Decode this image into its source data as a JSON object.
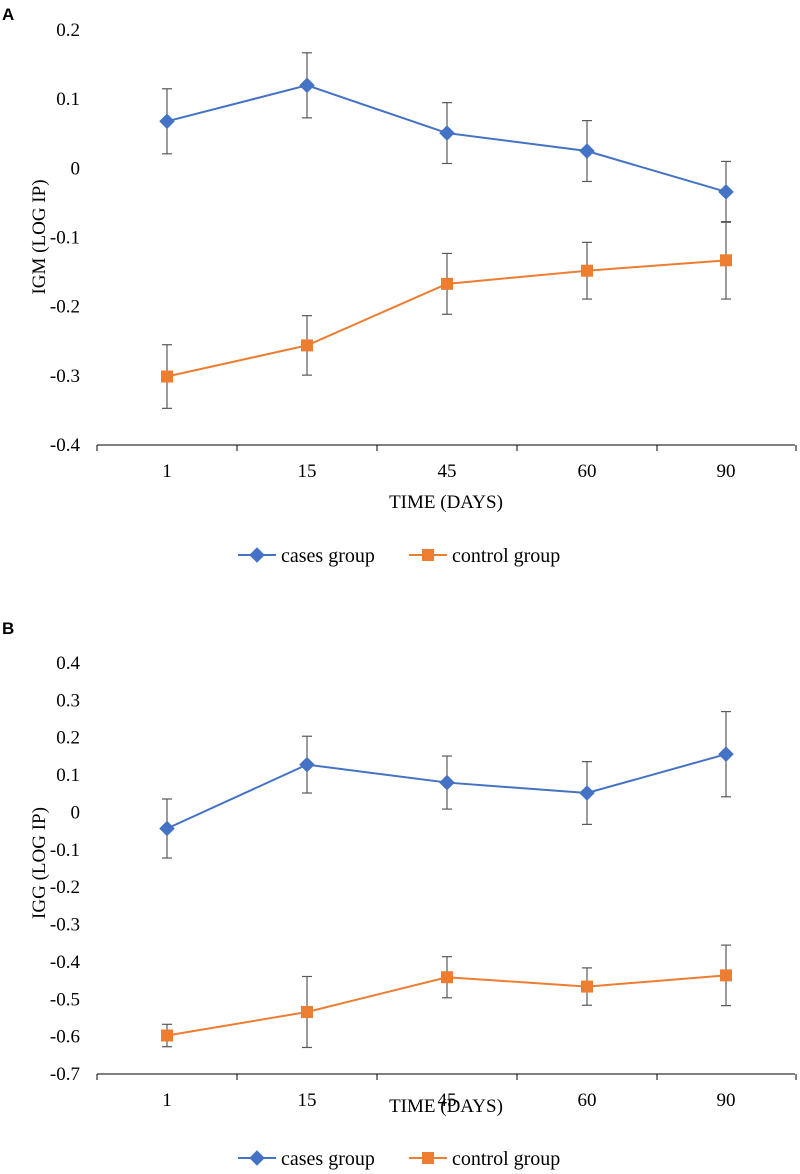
{
  "colors": {
    "cases": "#4472C4",
    "control": "#ED7D31",
    "errorbar": "#595959"
  },
  "chart_data": [
    {
      "type": "line",
      "panel": "A",
      "categories": [
        "1",
        "15",
        "45",
        "60",
        "90"
      ],
      "series": [
        {
          "name": "cases group",
          "values": [
            0.068,
            0.12,
            0.051,
            0.025,
            -0.034
          ],
          "errors": [
            0.047,
            0.047,
            0.044,
            0.044,
            0.044
          ]
        },
        {
          "name": "control group",
          "values": [
            -0.301,
            -0.256,
            -0.167,
            -0.148,
            -0.133
          ],
          "errors": [
            0.046,
            0.043,
            0.044,
            0.041,
            0.056
          ]
        }
      ],
      "xlabel": "TIME (DAYS)",
      "ylabel": "IGM (LOG IP)",
      "ylim": [
        -0.4,
        0.2
      ],
      "yticks": [
        "0.2",
        "0.1",
        "0",
        "-0.1",
        "-0.2",
        "-0.3",
        "-0.4"
      ],
      "legend": [
        "cases group",
        "control group"
      ]
    },
    {
      "type": "line",
      "panel": "B",
      "categories": [
        "1",
        "15",
        "45",
        "60",
        "90"
      ],
      "series": [
        {
          "name": "cases group",
          "values": [
            -0.043,
            0.128,
            0.08,
            0.052,
            0.156
          ],
          "errors": [
            0.079,
            0.076,
            0.071,
            0.084,
            0.114
          ]
        },
        {
          "name": "control group",
          "values": [
            -0.597,
            -0.534,
            -0.441,
            -0.466,
            -0.436
          ],
          "errors": [
            0.03,
            0.095,
            0.055,
            0.05,
            0.081
          ]
        }
      ],
      "xlabel": "TIME (DAYS)",
      "ylabel": "IGG (LOG IP)",
      "ylim": [
        -0.7,
        0.4
      ],
      "yticks": [
        "0.4",
        "0.3",
        "0.2",
        "0.1",
        "0",
        "-0.1",
        "-0.2",
        "-0.3",
        "-0.4",
        "-0.5",
        "-0.6",
        "-0.7"
      ],
      "legend": [
        "cases group",
        "control group"
      ]
    }
  ]
}
